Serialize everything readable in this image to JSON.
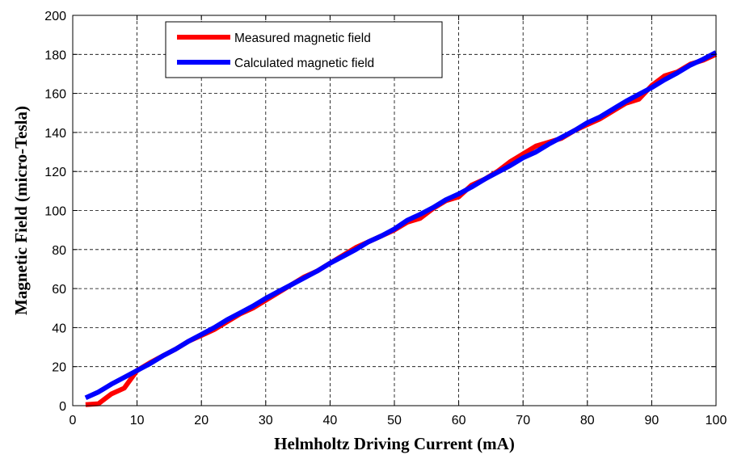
{
  "chart_data": {
    "type": "line",
    "title": "",
    "xlabel": "Helmholtz Driving Current (mA)",
    "ylabel": "Magnetic Field (micro-Tesla)",
    "xlim": [
      0,
      100
    ],
    "ylim": [
      0,
      200
    ],
    "xticks": [
      0,
      10,
      20,
      30,
      40,
      50,
      60,
      70,
      80,
      90,
      100
    ],
    "yticks": [
      0,
      20,
      40,
      60,
      80,
      100,
      120,
      140,
      160,
      180,
      200
    ],
    "grid": true,
    "grid_style": "dashed",
    "legend_position": "top-left",
    "series": [
      {
        "name": "Measured magnetic field",
        "color": "#ff0000",
        "x": [
          2,
          4,
          6,
          8,
          10,
          12,
          14,
          16,
          18,
          20,
          22,
          24,
          26,
          28,
          30,
          32,
          34,
          36,
          38,
          40,
          42,
          44,
          46,
          48,
          50,
          52,
          54,
          56,
          58,
          60,
          62,
          64,
          66,
          68,
          70,
          72,
          74,
          76,
          78,
          80,
          82,
          84,
          86,
          88,
          90,
          92,
          94,
          96,
          98,
          100
        ],
        "y": [
          0.5,
          1,
          6,
          9,
          18,
          22,
          25.5,
          29,
          33,
          36,
          39,
          43,
          47,
          50,
          54,
          58,
          62,
          66,
          69,
          73,
          77,
          81,
          84,
          87,
          90,
          94,
          96,
          101,
          105,
          107,
          113,
          116,
          120,
          125,
          129,
          133,
          135,
          137,
          141,
          144,
          147,
          151,
          155,
          157,
          164,
          169,
          171,
          175,
          177,
          180
        ]
      },
      {
        "name": "Calculated magnetic field",
        "color": "#0000ff",
        "x": [
          2,
          4,
          6,
          8,
          10,
          12,
          14,
          16,
          18,
          20,
          22,
          24,
          26,
          28,
          30,
          32,
          34,
          36,
          38,
          40,
          42,
          44,
          46,
          48,
          50,
          52,
          54,
          56,
          58,
          60,
          62,
          64,
          66,
          68,
          70,
          72,
          74,
          76,
          78,
          80,
          82,
          84,
          86,
          88,
          90,
          92,
          94,
          96,
          98,
          100
        ],
        "y": [
          4,
          7,
          11,
          14.5,
          18,
          21.5,
          25.5,
          29,
          33,
          36.5,
          40,
          44,
          47.5,
          51,
          55,
          58.5,
          62,
          65.5,
          69,
          73,
          76.5,
          80,
          84,
          87,
          90.5,
          95,
          98,
          101.5,
          105.5,
          108.5,
          112,
          116,
          119.5,
          123,
          127,
          130,
          134,
          137.5,
          141,
          145,
          148,
          152,
          156,
          159.5,
          163,
          167,
          170.5,
          174.5,
          177.5,
          181
        ]
      }
    ]
  }
}
